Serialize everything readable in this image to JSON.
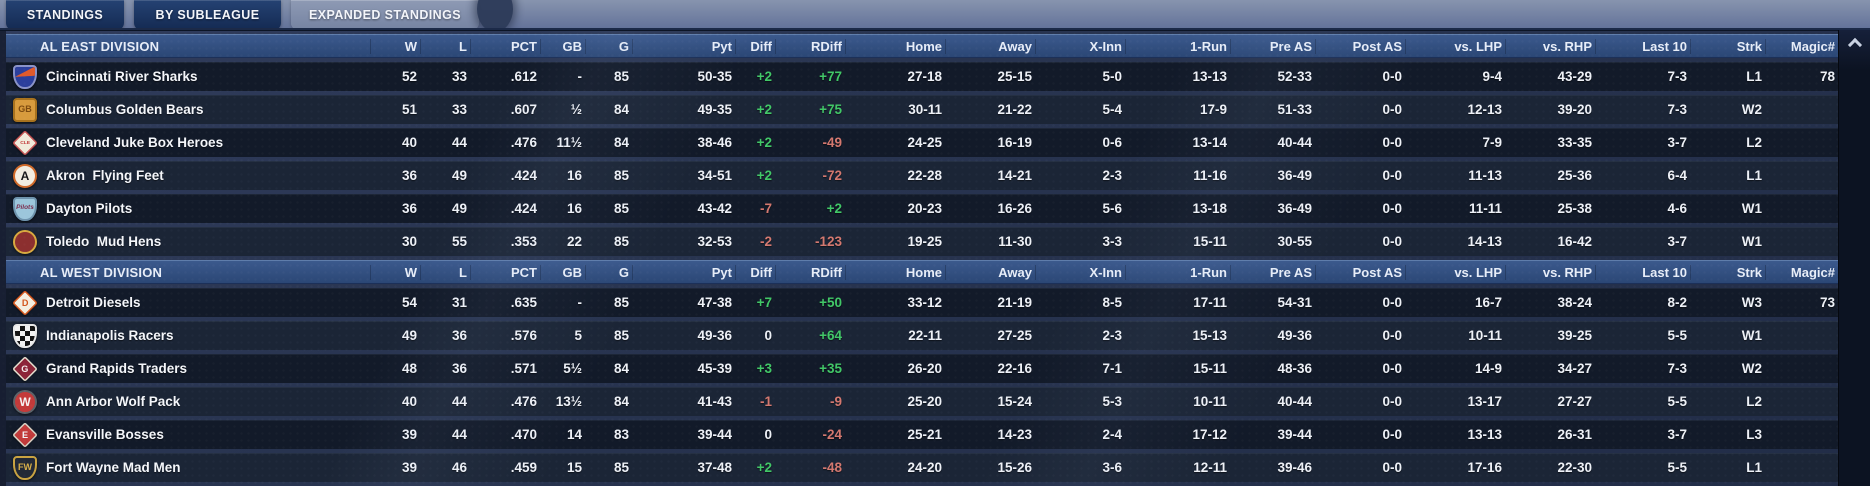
{
  "tabs": [
    {
      "label": "STANDINGS",
      "active": false
    },
    {
      "label": "BY SUBLEAGUE",
      "active": false
    },
    {
      "label": "EXPANDED STANDINGS",
      "active": true
    }
  ],
  "columns": [
    "W",
    "L",
    "PCT",
    "GB",
    "G",
    "Pyt",
    "Diff",
    "RDiff",
    "Home",
    "Away",
    "X-Inn",
    "1-Run",
    "Pre AS",
    "Post AS",
    "vs. LHP",
    "vs. RHP",
    "Last 10",
    "Strk",
    "Magic#"
  ],
  "colors": {
    "positive": "#41c767",
    "negative": "#d4786f"
  },
  "divisions": [
    {
      "name": "AL EAST DIVISION",
      "teams": [
        {
          "name": "Cincinnati River Sharks",
          "logo": {
            "shape": "shield",
            "bg": "#2c3f9c",
            "fg": "#ffffff",
            "text": "",
            "border": "#8a93c8",
            "accent": "#e05a2b"
          },
          "cells": [
            "52",
            "33",
            ".612",
            "-",
            "85",
            "50-35",
            "+2",
            "+77",
            "27-18",
            "25-15",
            "5-0",
            "13-13",
            "52-33",
            "0-0",
            "9-4",
            "43-29",
            "7-3",
            "L1",
            "78"
          ]
        },
        {
          "name": "Columbus Golden Bears",
          "logo": {
            "shape": "square",
            "bg": "#d89b3d",
            "fg": "#7c4a10",
            "text": "GB",
            "border": "#a8721e"
          },
          "cells": [
            "51",
            "33",
            ".607",
            "½",
            "84",
            "49-35",
            "+2",
            "+75",
            "30-11",
            "21-22",
            "5-4",
            "17-9",
            "51-33",
            "0-0",
            "12-13",
            "39-20",
            "7-3",
            "W2",
            ""
          ]
        },
        {
          "name": "Cleveland Juke Box Heroes",
          "logo": {
            "shape": "diamond",
            "bg": "#f1ebdb",
            "fg": "#c23a3a",
            "text": "CLE",
            "border": "#c05050"
          },
          "cells": [
            "40",
            "44",
            ".476",
            "11½",
            "84",
            "38-46",
            "+2",
            "-49",
            "24-25",
            "16-19",
            "0-6",
            "13-14",
            "40-44",
            "0-0",
            "7-9",
            "33-35",
            "3-7",
            "L2",
            ""
          ]
        },
        {
          "name": "Akron  Flying Feet",
          "logo": {
            "shape": "circle",
            "bg": "#f2ede1",
            "fg": "#17171a",
            "text": "A",
            "border": "#d06a2a"
          },
          "cells": [
            "36",
            "49",
            ".424",
            "16",
            "85",
            "34-51",
            "+2",
            "-72",
            "22-28",
            "14-21",
            "2-3",
            "11-16",
            "36-49",
            "0-0",
            "11-13",
            "25-36",
            "6-4",
            "L1",
            ""
          ]
        },
        {
          "name": "Dayton Pilots",
          "logo": {
            "shape": "shield",
            "bg": "#9cc6db",
            "fg": "#7c2f50",
            "text": "Pilots",
            "border": "#6e93ad"
          },
          "cells": [
            "36",
            "49",
            ".424",
            "16",
            "85",
            "43-42",
            "-7",
            "+2",
            "20-23",
            "16-26",
            "5-6",
            "13-18",
            "36-49",
            "0-0",
            "11-11",
            "25-38",
            "4-6",
            "W1",
            ""
          ]
        },
        {
          "name": "Toledo  Mud Hens",
          "logo": {
            "shape": "circle",
            "bg": "#8c2f2f",
            "fg": "#e0b13e",
            "text": "",
            "border": "#d8a940"
          },
          "cells": [
            "30",
            "55",
            ".353",
            "22",
            "85",
            "32-53",
            "-2",
            "-123",
            "19-25",
            "11-30",
            "3-3",
            "15-11",
            "30-55",
            "0-0",
            "14-13",
            "16-42",
            "3-7",
            "W1",
            ""
          ]
        }
      ]
    },
    {
      "name": "AL WEST DIVISION",
      "teams": [
        {
          "name": "Detroit Diesels",
          "logo": {
            "shape": "diamond",
            "bg": "#f4efe1",
            "fg": "#d3561d",
            "text": "D",
            "border": "#d3561d"
          },
          "cells": [
            "54",
            "31",
            ".635",
            "-",
            "85",
            "47-38",
            "+7",
            "+50",
            "33-12",
            "21-19",
            "8-5",
            "17-11",
            "54-31",
            "0-0",
            "16-7",
            "38-24",
            "8-2",
            "W3",
            "73"
          ]
        },
        {
          "name": "Indianapolis Racers",
          "logo": {
            "shape": "checker",
            "bg": "#141414",
            "fg": "#f2f2f2",
            "text": "",
            "border": "#e8e8e8"
          },
          "cells": [
            "49",
            "36",
            ".576",
            "5",
            "85",
            "49-36",
            "0",
            "+64",
            "22-11",
            "27-25",
            "2-3",
            "15-13",
            "49-36",
            "0-0",
            "10-11",
            "39-25",
            "5-5",
            "W1",
            ""
          ]
        },
        {
          "name": "Grand Rapids Traders",
          "logo": {
            "shape": "diamond",
            "bg": "#8c2438",
            "fg": "#f4ecec",
            "text": "G",
            "border": "#e3dccd"
          },
          "cells": [
            "48",
            "36",
            ".571",
            "5½",
            "84",
            "45-39",
            "+3",
            "+35",
            "26-20",
            "22-16",
            "7-1",
            "15-11",
            "48-36",
            "0-0",
            "14-9",
            "34-27",
            "7-3",
            "W2",
            ""
          ]
        },
        {
          "name": "Ann Arbor Wolf Pack",
          "logo": {
            "shape": "circle",
            "bg": "#c43a3a",
            "fg": "#f5f2f2",
            "text": "W",
            "border": "#5d6269"
          },
          "cells": [
            "40",
            "44",
            ".476",
            "13½",
            "84",
            "41-43",
            "-1",
            "-9",
            "25-20",
            "15-24",
            "5-3",
            "10-11",
            "40-44",
            "0-0",
            "13-17",
            "27-27",
            "5-5",
            "L2",
            ""
          ]
        },
        {
          "name": "Evansville Bosses",
          "logo": {
            "shape": "diamond",
            "bg": "#c23a3a",
            "fg": "#f2f4f8",
            "text": "E",
            "border": "#d8d0c2"
          },
          "cells": [
            "39",
            "44",
            ".470",
            "14",
            "83",
            "39-44",
            "0",
            "-24",
            "25-21",
            "14-23",
            "2-4",
            "17-12",
            "39-44",
            "0-0",
            "13-13",
            "26-31",
            "3-7",
            "L3",
            ""
          ]
        },
        {
          "name": "Fort Wayne Mad Men",
          "logo": {
            "shape": "shield",
            "bg": "#222936",
            "fg": "#d8b04a",
            "text": "FW",
            "border": "#c9a342"
          },
          "cells": [
            "39",
            "46",
            ".459",
            "15",
            "85",
            "37-48",
            "+2",
            "-48",
            "24-20",
            "15-26",
            "3-6",
            "12-11",
            "39-46",
            "0-0",
            "17-16",
            "22-30",
            "5-5",
            "L1",
            ""
          ]
        }
      ]
    }
  ]
}
